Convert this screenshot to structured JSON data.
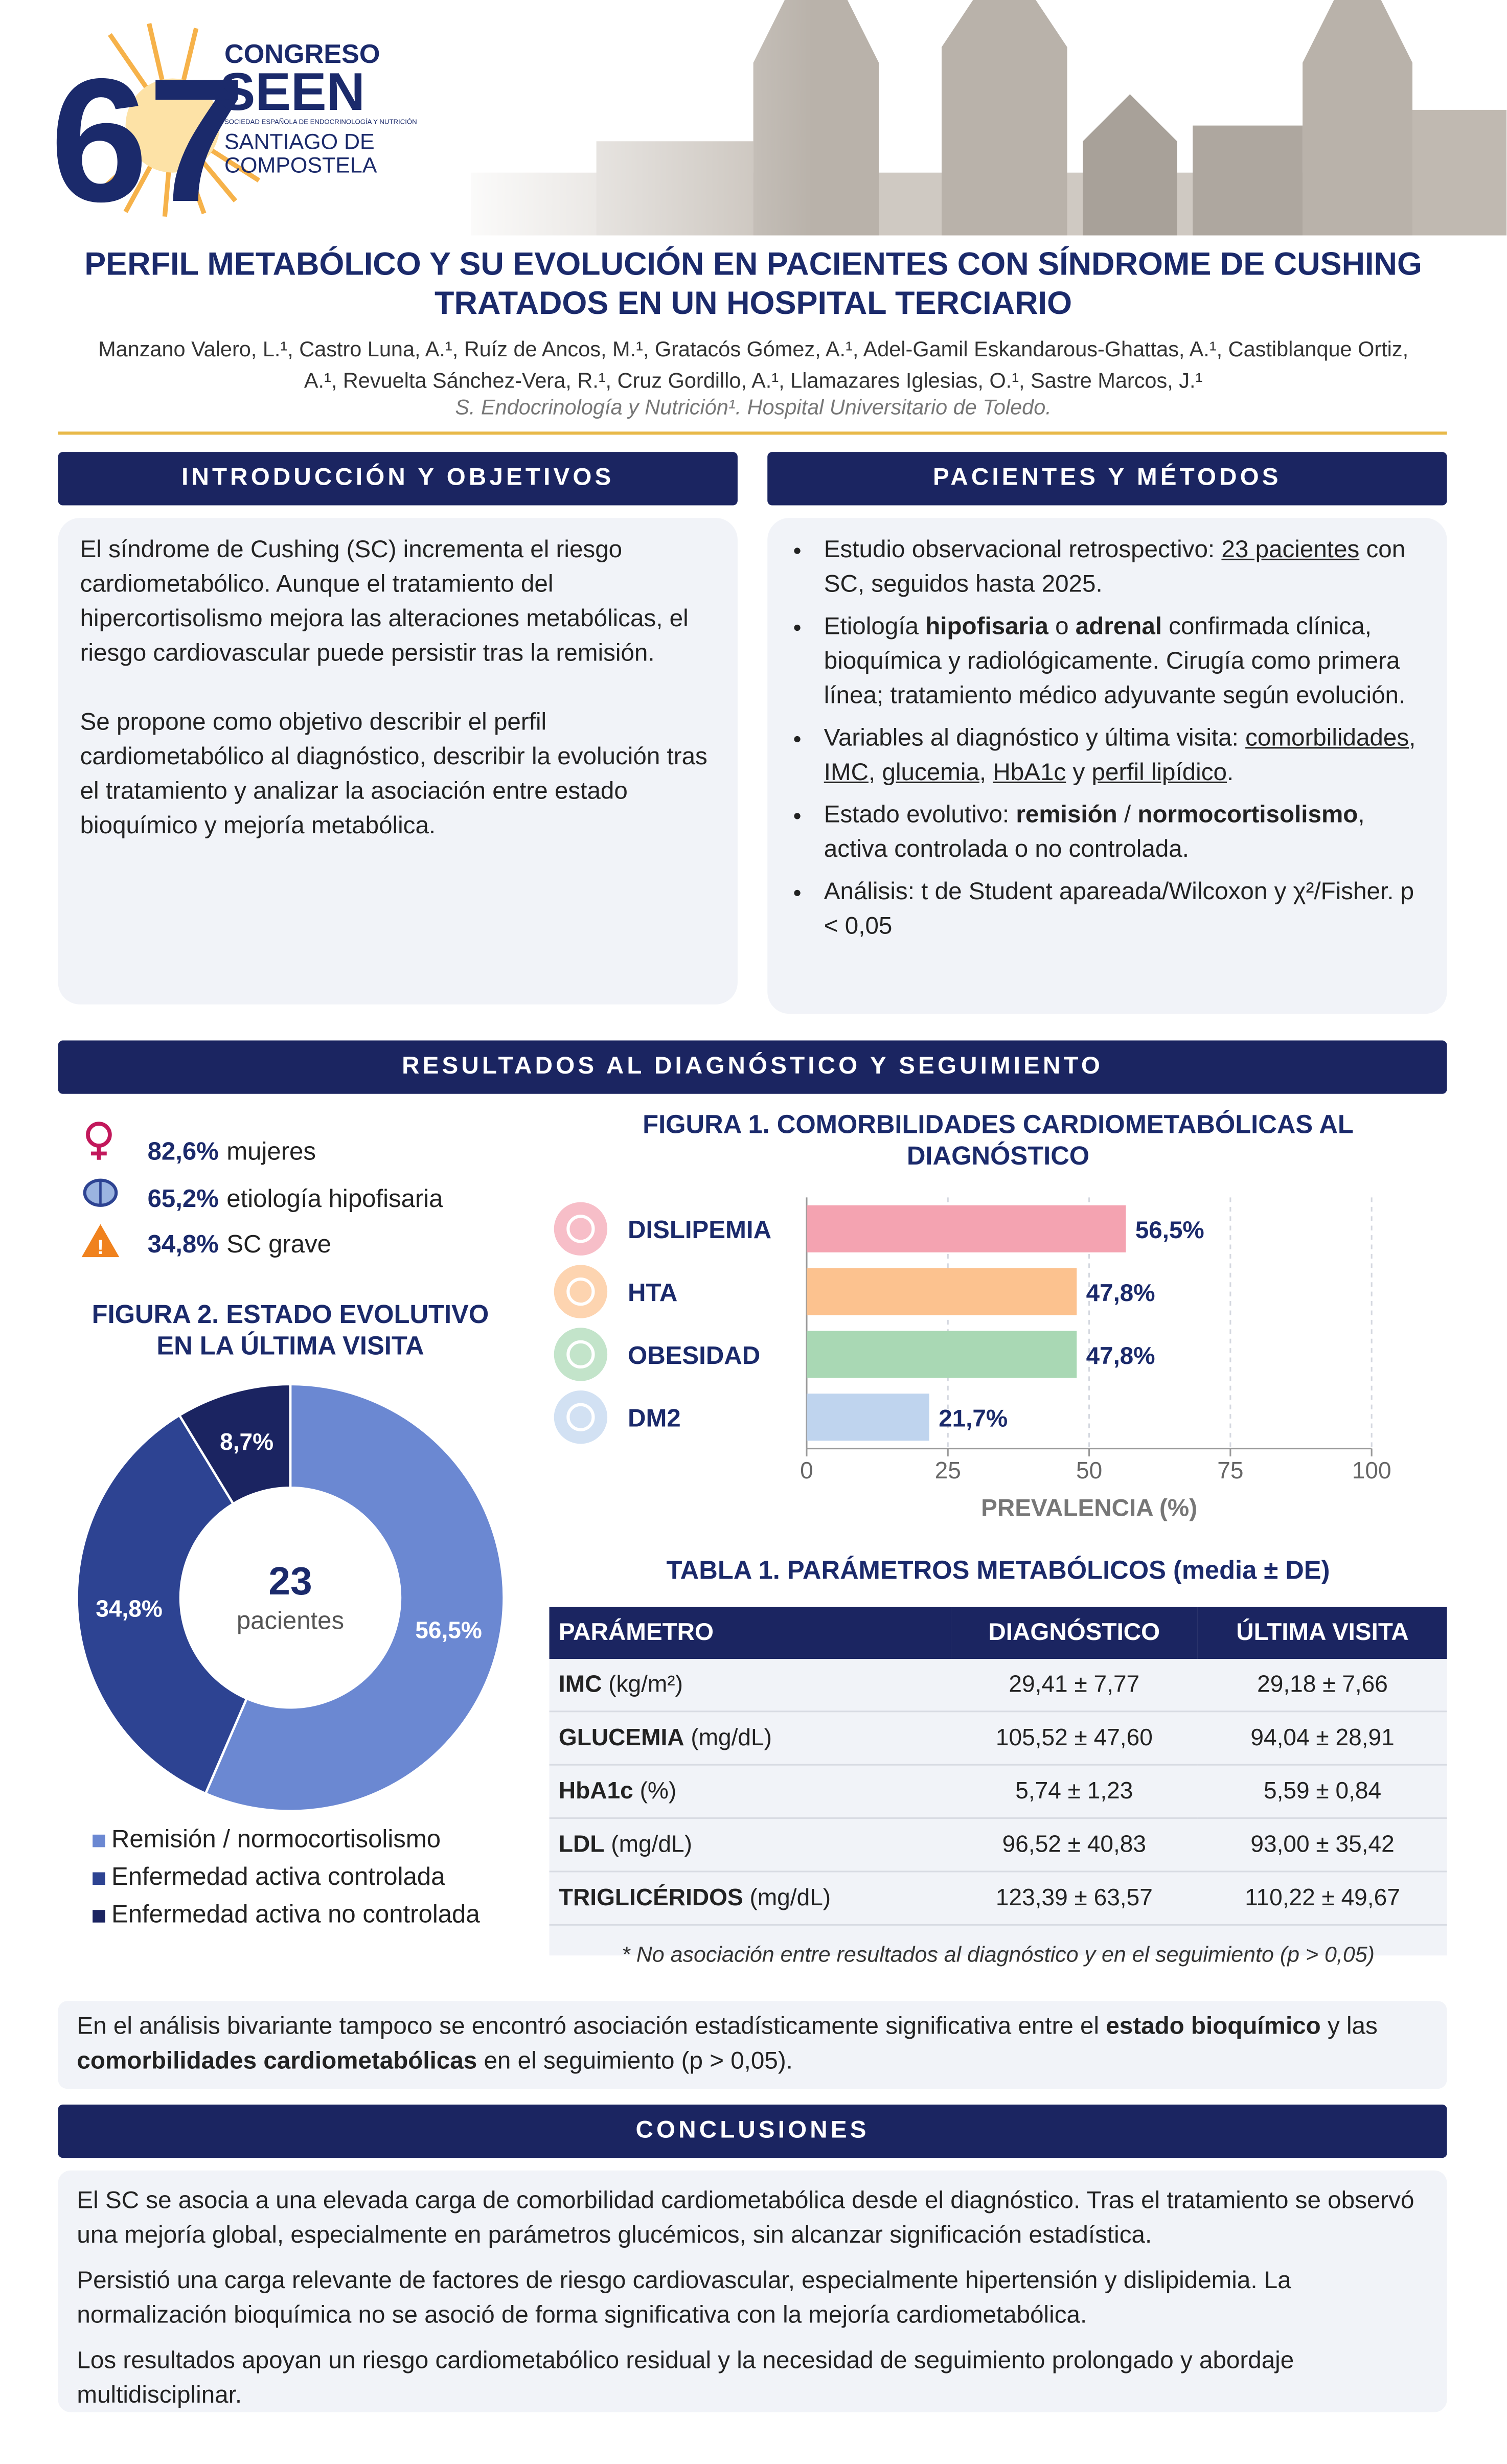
{
  "header": {
    "number": "67",
    "congress": "CONGRESO",
    "society": "SEEN",
    "society_full": "SOCIEDAD ESPAÑOLA DE ENDOCRINOLOGÍA Y NUTRICIÓN",
    "city_1": "SANTIAGO DE",
    "city_2": "COMPOSTELA"
  },
  "title": "PERFIL METABÓLICO Y SU EVOLUCIÓN EN PACIENTES CON SÍNDROME DE CUSHING TRATADOS EN UN HOSPITAL TERCIARIO",
  "authors": "Manzano Valero, L.¹, Castro Luna, A.¹, Ruíz de Ancos, M.¹, Gratacós Gómez, A.¹, Adel-Gamil Eskandarous-Ghattas, A.¹, Castiblanque Ortiz, A.¹, Revuelta Sánchez-Vera, R.¹, Cruz Gordillo, A.¹, Llamazares Iglesias, O.¹, Sastre Marcos, J.¹",
  "affiliation": "S. Endocrinología y Nutrición¹. Hospital Universitario de Toledo.",
  "introduction": {
    "heading": "INTRODUCCIÓN Y OBJETIVOS",
    "paragraphs": [
      "El síndrome de Cushing (SC) incrementa el riesgo cardiometabólico. Aunque el tratamiento del hipercortisolismo mejora las alteraciones metabólicas, el riesgo cardiovascular puede persistir tras la remisión.",
      "Se propone como objetivo describir el perfil cardiometabólico al diagnóstico, describir la evolución tras el tratamiento y analizar la asociación entre estado bioquímico y mejoría metabólica."
    ]
  },
  "methods": {
    "heading": "PACIENTES Y MÉTODOS",
    "bullets": [
      [
        {
          "text": "Estudio observacional retrospectivo: "
        },
        {
          "text": "23 pacientes",
          "style": "underline"
        },
        {
          "text": " con SC, seguidos hasta 2025."
        }
      ],
      [
        {
          "text": "Etiología "
        },
        {
          "text": "hipofisaria",
          "style": "bold"
        },
        {
          "text": " o "
        },
        {
          "text": "adrenal",
          "style": "bold"
        },
        {
          "text": " confirmada clínica, bioquímica y radiológicamente. Cirugía como primera línea; tratamiento médico adyuvante según evolución."
        }
      ],
      [
        {
          "text": "Variables al diagnóstico y última visita: "
        },
        {
          "text": "comorbilidades",
          "style": "underline"
        },
        {
          "text": ", "
        },
        {
          "text": "IMC",
          "style": "underline"
        },
        {
          "text": ", "
        },
        {
          "text": "glucemia",
          "style": "underline"
        },
        {
          "text": ", "
        },
        {
          "text": "HbA1c",
          "style": "underline"
        },
        {
          "text": " y "
        },
        {
          "text": "perfil lipídico",
          "style": "underline"
        },
        {
          "text": "."
        }
      ],
      [
        {
          "text": "Estado evolutivo: "
        },
        {
          "text": "remisión",
          "style": "bold"
        },
        {
          "text": " / "
        },
        {
          "text": "normocortisolismo",
          "style": "bold"
        },
        {
          "text": ", activa controlada o no controlada."
        }
      ],
      [
        {
          "text": "Análisis: t de Student apareada/Wilcoxon y χ²/Fisher. p < 0,05"
        }
      ]
    ]
  },
  "results": {
    "heading": "RESULTADOS AL DIAGNÓSTICO Y SEGUIMIENTO",
    "stats": [
      {
        "value": "82,6%",
        "label": "mujeres"
      },
      {
        "value": "65,2%",
        "label": "etiología hipofisaria"
      },
      {
        "value": "34,8%",
        "label": "SC grave"
      }
    ]
  },
  "figure1": {
    "type": "bar",
    "orientation": "horizontal",
    "title": "FIGURA 1. COMORBILIDADES CARDIOMETABÓLICAS AL DIAGNÓSTICO",
    "categories": [
      "DISLIPEMIA",
      "HTA",
      "OBESIDAD",
      "DM2"
    ],
    "values": [
      56.5,
      47.8,
      47.8,
      21.7
    ],
    "value_labels": [
      "56,5%",
      "47,8%",
      "47,8%",
      "21,7%"
    ],
    "colors": [
      "#f4a3b1",
      "#fcc28f",
      "#a9d8b4",
      "#bfd4ee"
    ],
    "xlim": [
      0,
      100
    ],
    "xticks": [
      0,
      25,
      50,
      75,
      100
    ],
    "xlabel": "PREVALENCIA (%)",
    "grid": true
  },
  "figure2": {
    "type": "donut",
    "title": "FIGURA 2. ESTADO EVOLUTIVO EN LA ÚLTIMA VISITA",
    "center_value": "23",
    "center_label": "pacientes",
    "categories": [
      "Remisión / normocortisolismo",
      "Enfermedad activa controlada",
      "Enfermedad activa no controlada"
    ],
    "values": [
      56.5,
      34.8,
      8.7
    ],
    "value_labels": [
      "56,5%",
      "34,8%",
      "8,7%"
    ],
    "colors": [
      "#6b88d2",
      "#2d4392",
      "#1b2461"
    ]
  },
  "table": {
    "title": "TABLA 1. PARÁMETROS METABÓLICOS (media ± DE)",
    "columns": [
      "PARÁMETRO",
      "DIAGNÓSTICO",
      "ÚLTIMA VISITA"
    ],
    "rows": [
      {
        "parameter": "IMC",
        "unit": " (kg/m²)",
        "diagnosis": "29,41 ± 7,77",
        "last": "29,18 ± 7,66"
      },
      {
        "parameter": "GLUCEMIA",
        "unit": " (mg/dL)",
        "diagnosis": "105,52 ± 47,60",
        "last": "94,04 ± 28,91"
      },
      {
        "parameter": "HbA1c",
        "unit": " (%)",
        "diagnosis": "5,74 ± 1,23",
        "last": "5,59 ± 0,84"
      },
      {
        "parameter": "LDL",
        "unit": " (mg/dL)",
        "diagnosis": "96,52 ± 40,83",
        "last": "93,00 ± 35,42"
      },
      {
        "parameter": "TRIGLICÉRIDOS",
        "unit": " (mg/dL)",
        "diagnosis": "123,39 ± 63,57",
        "last": "110,22 ± 49,67"
      }
    ],
    "footnote": "* No asociación entre resultados al diagnóstico y en el seguimiento (p > 0,05)"
  },
  "bivariate": [
    {
      "text": "En el análisis bivariante tampoco se encontró asociación estadísticamente significativa entre el "
    },
    {
      "text": "estado bioquímico",
      "style": "bold"
    },
    {
      "text": " y las "
    },
    {
      "text": "comorbilidades cardiometabólicas",
      "style": "bold"
    },
    {
      "text": " en el seguimiento (p > 0,05)."
    }
  ],
  "conclusions": {
    "heading": "CONCLUSIONES",
    "paragraphs": [
      "El SC se asocia a una elevada carga de comorbilidad cardiometabólica desde el diagnóstico. Tras el tratamiento se observó una mejoría global, especialmente en parámetros glucémicos, sin alcanzar significación estadística.",
      "Persistió una carga relevante de factores de riesgo cardiovascular, especialmente hipertensión y dislipidemia. La normalización bioquímica no se asoció de forma significativa con la mejoría cardiometabólica.",
      "Los resultados apoyan un riesgo cardiometabólico residual y la necesidad de seguimiento prolongado y abordaje multidisciplinar."
    ]
  }
}
